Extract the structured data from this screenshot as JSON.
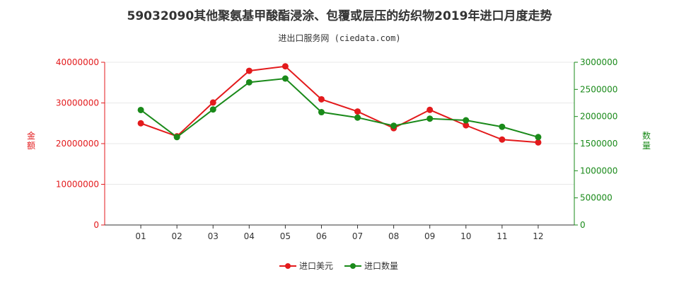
{
  "title": "59032090其他聚氨基甲酸酯浸涂、包覆或层压的纺织物2019年进口月度走势",
  "subtitle": "进出口服务网 (ciedata.com)",
  "colors": {
    "value_series": "#e31a1c",
    "quantity_series": "#1a8a1a",
    "axis": "#333333",
    "grid": "#e8e8e8"
  },
  "chart_data": {
    "type": "line",
    "categories": [
      "01",
      "02",
      "03",
      "04",
      "05",
      "06",
      "07",
      "08",
      "09",
      "10",
      "11",
      "12"
    ],
    "y_left": {
      "label": "金额",
      "range": [
        0,
        40000000
      ],
      "ticks": [
        "0",
        "10000000",
        "20000000",
        "30000000",
        "40000000"
      ]
    },
    "y_right": {
      "label": "数量",
      "range": [
        0,
        3000000
      ],
      "ticks": [
        "0",
        "500000",
        "1000000",
        "1500000",
        "2000000",
        "2500000",
        "3000000"
      ]
    },
    "series": [
      {
        "name": "进口美元",
        "axis": "left",
        "values": [
          25000000,
          21800000,
          30100000,
          37900000,
          39000000,
          30900000,
          27900000,
          23800000,
          28300000,
          24500000,
          21000000,
          20300000
        ]
      },
      {
        "name": "进口数量",
        "axis": "right",
        "values": [
          2120000,
          1620000,
          2130000,
          2630000,
          2700000,
          2080000,
          1980000,
          1830000,
          1960000,
          1930000,
          1810000,
          1620000
        ]
      }
    ],
    "grid": true,
    "legend_position": "bottom-center"
  }
}
